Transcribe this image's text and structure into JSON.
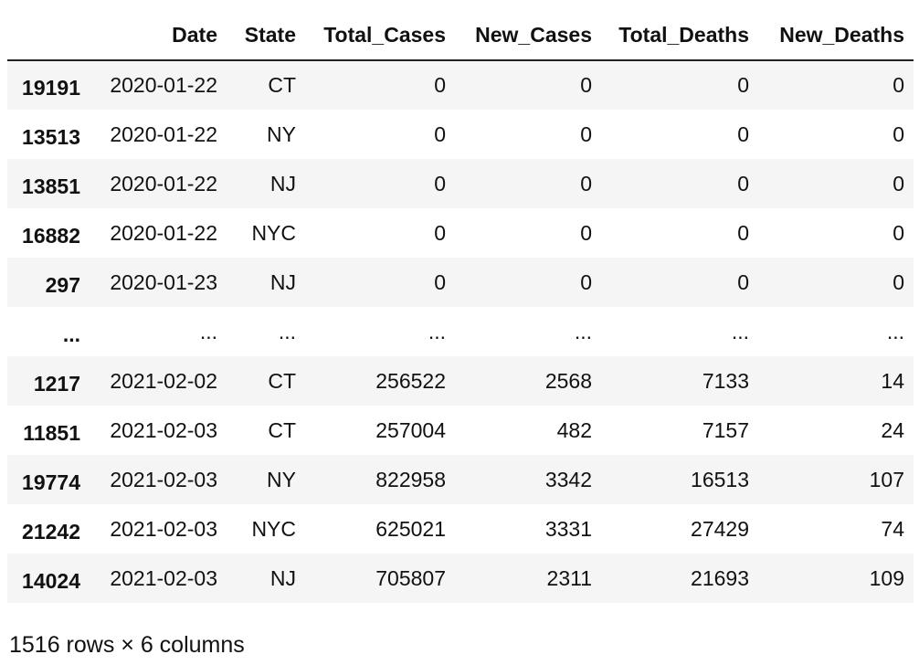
{
  "table": {
    "columns": [
      "",
      "Date",
      "State",
      "Total_Cases",
      "New_Cases",
      "Total_Deaths",
      "New_Deaths"
    ],
    "rows": [
      {
        "index": "19191",
        "cells": [
          "2020-01-22",
          "CT",
          "0",
          "0",
          "0",
          "0"
        ]
      },
      {
        "index": "13513",
        "cells": [
          "2020-01-22",
          "NY",
          "0",
          "0",
          "0",
          "0"
        ]
      },
      {
        "index": "13851",
        "cells": [
          "2020-01-22",
          "NJ",
          "0",
          "0",
          "0",
          "0"
        ]
      },
      {
        "index": "16882",
        "cells": [
          "2020-01-22",
          "NYC",
          "0",
          "0",
          "0",
          "0"
        ]
      },
      {
        "index": "297",
        "cells": [
          "2020-01-23",
          "NJ",
          "0",
          "0",
          "0",
          "0"
        ]
      },
      {
        "index": "...",
        "cells": [
          "...",
          "...",
          "...",
          "...",
          "...",
          "..."
        ]
      },
      {
        "index": "1217",
        "cells": [
          "2021-02-02",
          "CT",
          "256522",
          "2568",
          "7133",
          "14"
        ]
      },
      {
        "index": "11851",
        "cells": [
          "2021-02-03",
          "CT",
          "257004",
          "482",
          "7157",
          "24"
        ]
      },
      {
        "index": "19774",
        "cells": [
          "2021-02-03",
          "NY",
          "822958",
          "3342",
          "16513",
          "107"
        ]
      },
      {
        "index": "21242",
        "cells": [
          "2021-02-03",
          "NYC",
          "625021",
          "3331",
          "27429",
          "74"
        ]
      },
      {
        "index": "14024",
        "cells": [
          "2021-02-03",
          "NJ",
          "705807",
          "2311",
          "21693",
          "109"
        ]
      }
    ]
  },
  "footer": {
    "shape_text": "1516 rows × 6 columns"
  },
  "colors": {
    "stripe": "#f5f5f5",
    "header_rule": "#222222"
  }
}
